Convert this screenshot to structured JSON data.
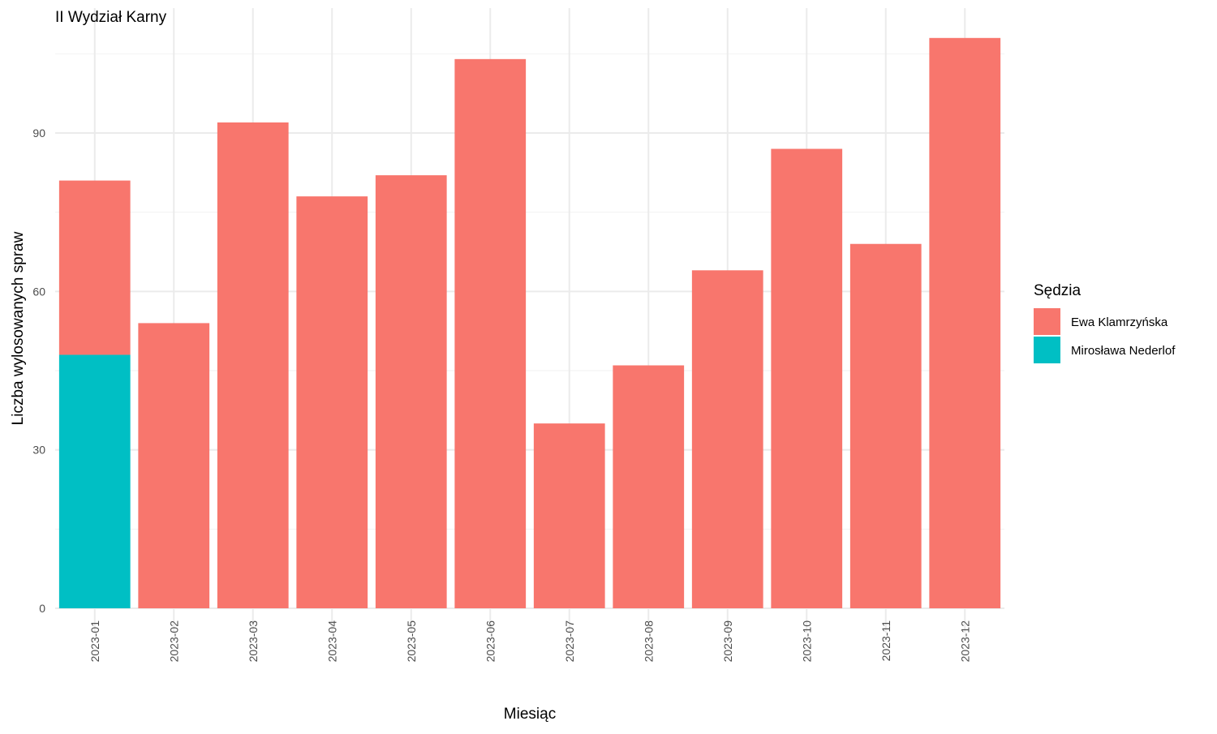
{
  "chart_data": {
    "type": "bar",
    "stacked": true,
    "title": "II Wydział Karny",
    "xlabel": "Miesiąc",
    "ylabel": "Liczba wylosowanych spraw",
    "categories": [
      "2023-01",
      "2023-02",
      "2023-03",
      "2023-04",
      "2023-05",
      "2023-06",
      "2023-07",
      "2023-08",
      "2023-09",
      "2023-10",
      "2023-11",
      "2023-12"
    ],
    "series": [
      {
        "name": "Mirosława Nederlof",
        "color": "#00BFC4",
        "values": [
          48,
          0,
          0,
          0,
          0,
          0,
          0,
          0,
          0,
          0,
          0,
          0
        ]
      },
      {
        "name": "Ewa Klamrzyńska",
        "color": "#F8766D",
        "values": [
          33,
          54,
          92,
          78,
          82,
          104,
          35,
          46,
          64,
          87,
          69,
          108
        ]
      }
    ],
    "yticks": [
      0,
      30,
      60,
      90
    ],
    "ylim": [
      0,
      113
    ],
    "grid": true,
    "legend": {
      "title": "Sędzia",
      "position": "right",
      "entries": [
        {
          "label": "Ewa Klamrzyńska",
          "color": "#F8766D"
        },
        {
          "label": "Mirosława Nederlof",
          "color": "#00BFC4"
        }
      ]
    }
  }
}
